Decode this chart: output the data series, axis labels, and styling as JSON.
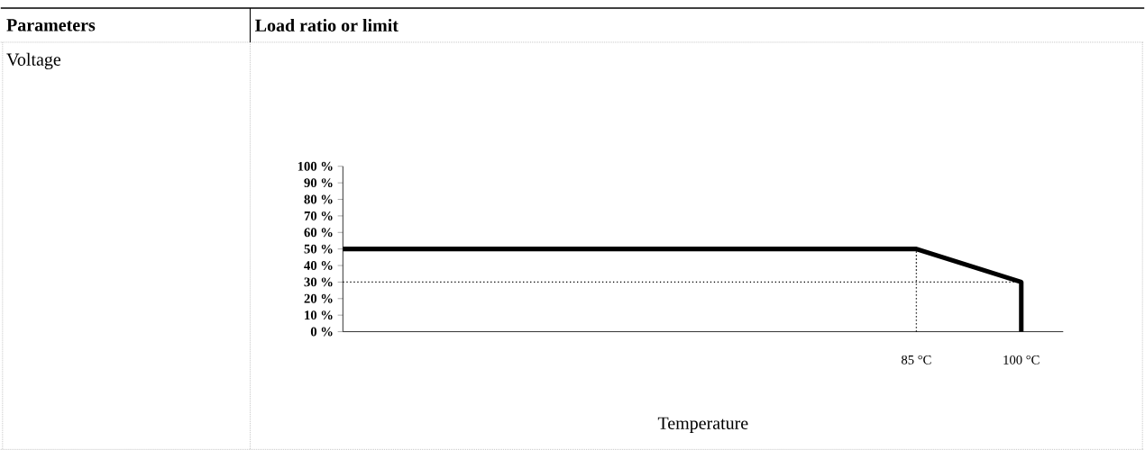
{
  "chart_data": {
    "type": "line",
    "xlabel": "Temperature",
    "annotations": [
      "Parameters",
      "Load ratio or limit",
      "Voltage"
    ],
    "series": [
      {
        "color": "#000000",
        "x": [
          3,
          85,
          100,
          100
        ],
        "values": [
          50,
          50,
          30,
          0
        ]
      }
    ],
    "xlim": [
      3,
      106
    ],
    "xticks": [
      {
        "value": 85,
        "label": "85 °C"
      },
      {
        "value": 100,
        "label": "100 °C"
      }
    ],
    "ylim": [
      0,
      100
    ],
    "yticks": [
      {
        "value": 0,
        "label": "0 %"
      },
      {
        "value": 10,
        "label": "10 %"
      },
      {
        "value": 20,
        "label": "20 %"
      },
      {
        "value": 30,
        "label": "30 %"
      },
      {
        "value": 40,
        "label": "40 %"
      },
      {
        "value": 50,
        "label": "50 %"
      },
      {
        "value": 60,
        "label": "60 %"
      },
      {
        "value": 70,
        "label": "70 %"
      },
      {
        "value": 80,
        "label": "80 %"
      },
      {
        "value": 90,
        "label": "90 %"
      },
      {
        "value": 100,
        "label": "100 %"
      }
    ],
    "ref_lines": [
      {
        "axis": "x",
        "value": 85,
        "line_style": "dotted"
      },
      {
        "axis": "y",
        "value": 30,
        "line_style": "dotted"
      }
    ]
  }
}
